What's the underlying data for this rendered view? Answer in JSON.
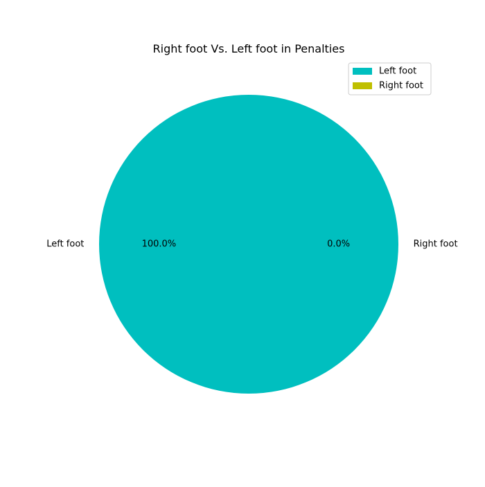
{
  "chart_data": {
    "type": "pie",
    "title": "Right foot Vs. Left foot in Penalties",
    "slices": [
      {
        "label": "Left foot",
        "value": 100.0,
        "percent_label": "100.0%",
        "color": "#00bfbf"
      },
      {
        "label": "Right foot",
        "value": 0.0,
        "percent_label": "0.0%",
        "color": "#bfbf00"
      }
    ],
    "legend": {
      "placement": "top-right",
      "entries": [
        "Left foot",
        "Right foot"
      ]
    }
  }
}
